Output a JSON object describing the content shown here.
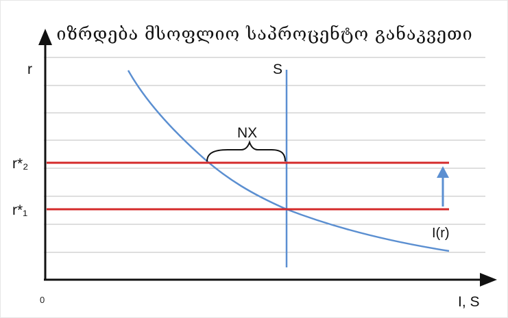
{
  "title": "იზრდება მსოფლიო საპროცენტო განაკვეთი",
  "axes": {
    "y_label": "r",
    "x_label": "I, S",
    "origin_label": "0"
  },
  "labels": {
    "r_star_2": "r*₂",
    "r_star_1": "r*₁",
    "savings": "S",
    "investment": "I(r)",
    "net_exports": "NX"
  },
  "colors": {
    "rate_lines": "#d42a2a",
    "curves": "#5b8fd1",
    "grid": "#bdbdbd",
    "axes": "#111111"
  }
}
